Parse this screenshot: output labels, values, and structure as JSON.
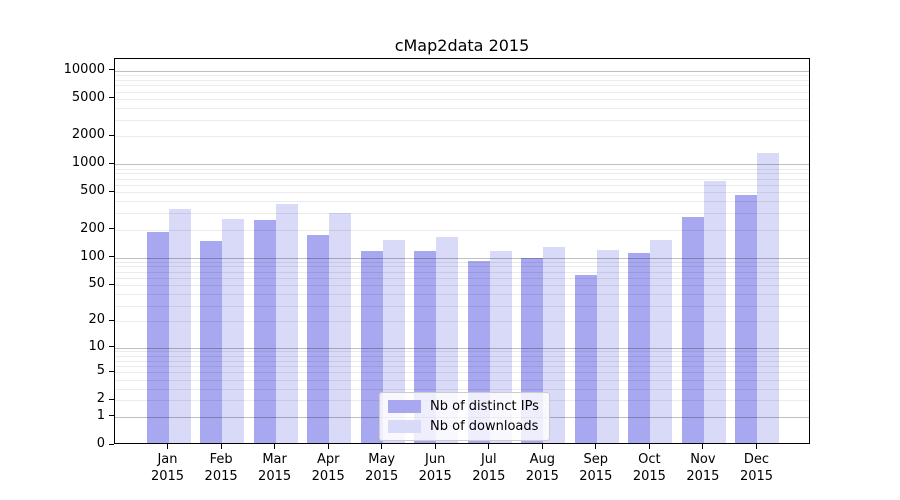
{
  "chart": {
    "title": "cMap2data 2015"
  },
  "chart_data": {
    "type": "bar",
    "title": "cMap2data 2015",
    "categories": [
      {
        "month": "Jan",
        "year": "2015"
      },
      {
        "month": "Feb",
        "year": "2015"
      },
      {
        "month": "Mar",
        "year": "2015"
      },
      {
        "month": "Apr",
        "year": "2015"
      },
      {
        "month": "May",
        "year": "2015"
      },
      {
        "month": "Jun",
        "year": "2015"
      },
      {
        "month": "Jul",
        "year": "2015"
      },
      {
        "month": "Aug",
        "year": "2015"
      },
      {
        "month": "Sep",
        "year": "2015"
      },
      {
        "month": "Oct",
        "year": "2015"
      },
      {
        "month": "Nov",
        "year": "2015"
      },
      {
        "month": "Dec",
        "year": "2015"
      }
    ],
    "series": [
      {
        "name": "Nb of distinct IPs",
        "color": "#a8a8f0",
        "values": [
          178,
          145,
          240,
          166,
          113,
          111,
          88,
          95,
          62,
          106,
          258,
          450
        ]
      },
      {
        "name": "Nb of downloads",
        "color": "#d9d9f8",
        "values": [
          316,
          250,
          360,
          286,
          146,
          159,
          111,
          123,
          115,
          148,
          625,
          1260
        ]
      }
    ],
    "yscale": "log1p",
    "ylim": [
      0,
      13350
    ],
    "yticks": [
      0,
      1,
      2,
      5,
      10,
      20,
      50,
      100,
      200,
      500,
      1000,
      2000,
      5000,
      10000
    ],
    "grid": {
      "orientation": "horizontal",
      "major_values": [
        1,
        10,
        100,
        1000,
        10000
      ],
      "minor_decades": [
        1,
        10,
        100,
        1000
      ],
      "major_color": "rgba(0,0,0,0.25)",
      "minor_color": "rgba(0,0,0,0.08)"
    },
    "legend_position": "lower center inside",
    "xlabel": "",
    "ylabel": ""
  }
}
